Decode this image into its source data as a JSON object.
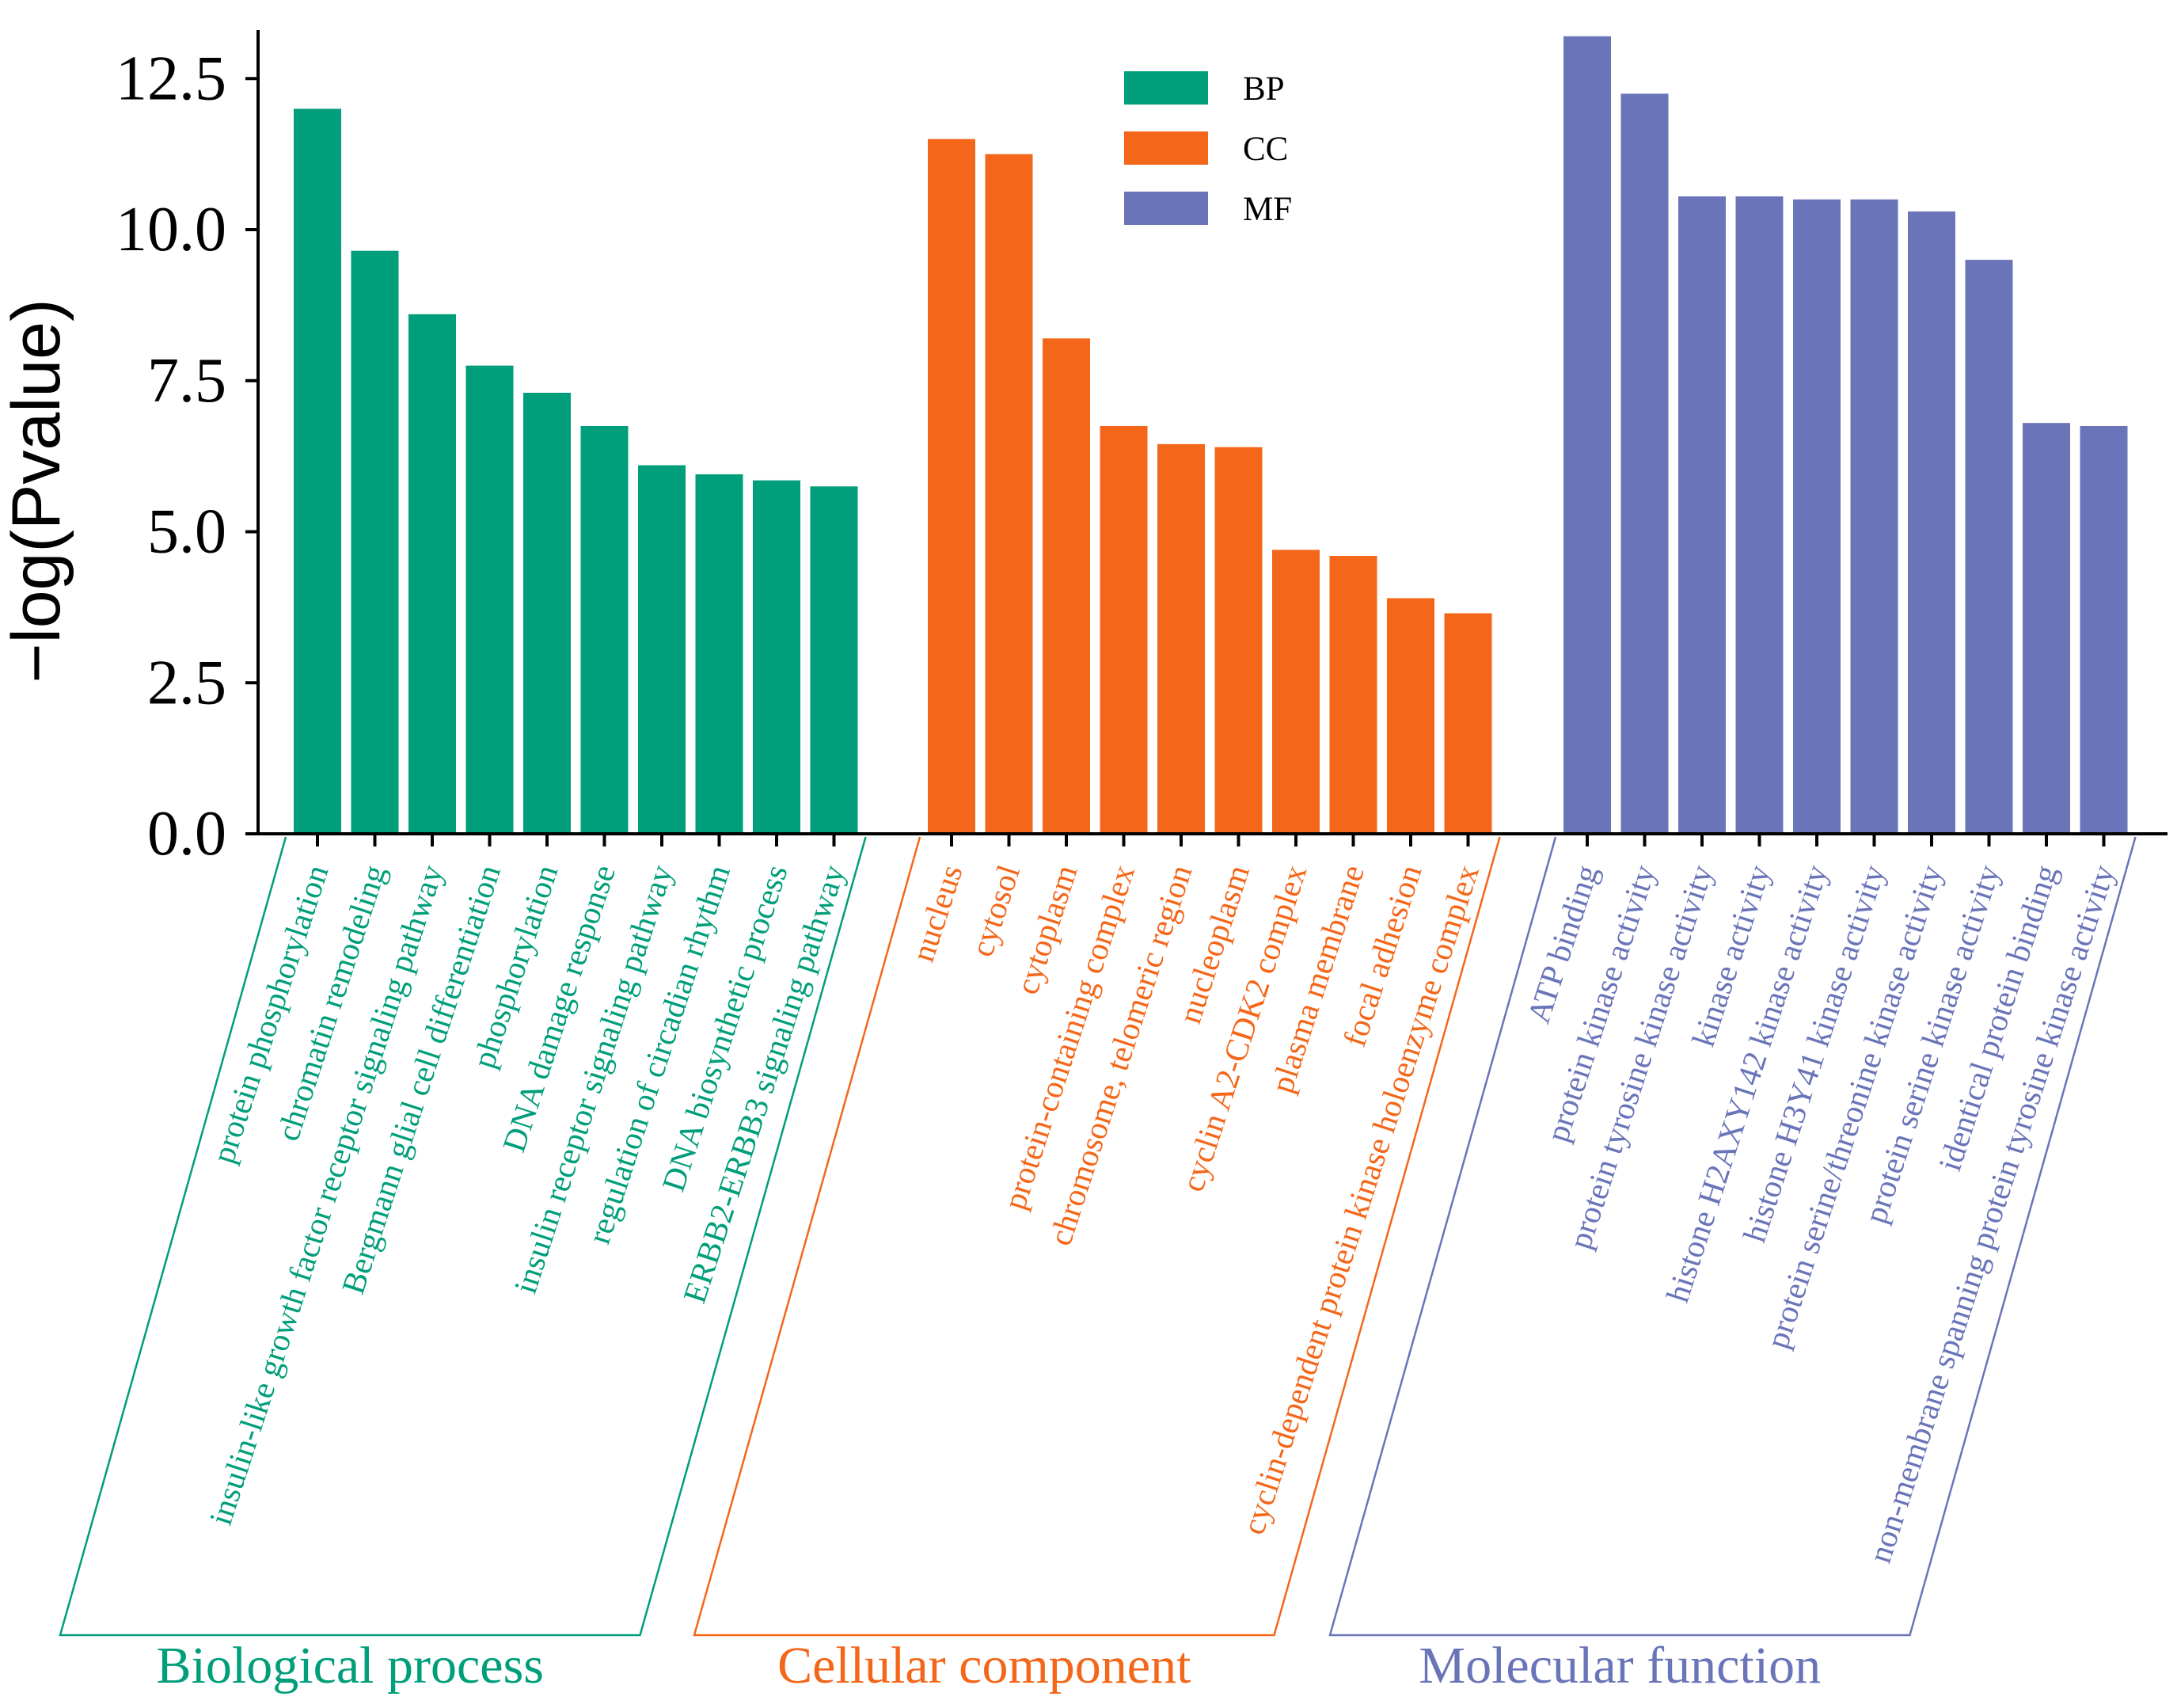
{
  "chart_data": {
    "type": "bar",
    "title": "",
    "xlabel": "",
    "ylabel": "−log(Pvalue)",
    "ylim": [
      0,
      13.3
    ],
    "yticks": [
      "0.0",
      "2.5",
      "5.0",
      "7.5",
      "10.0",
      "12.5"
    ],
    "ytick_values": [
      0,
      2.5,
      5.0,
      7.5,
      10.0,
      12.5
    ],
    "grid": false,
    "legend_position": "top-center",
    "legend": [
      {
        "label": "BP",
        "color": "#009E7A"
      },
      {
        "label": "CC",
        "color": "#F4671A"
      },
      {
        "label": "MF",
        "color": "#6A74B8"
      }
    ],
    "groups": [
      {
        "key": "BP",
        "name": "Biological process",
        "color": "#009E7A",
        "categories": [
          "protein phosphorylation",
          "chromatin remodeling",
          "insulin-like growth factor receptor signaling pathway",
          "Bergmann glial cell differentiation",
          "phosphorylation",
          "DNA damage response",
          "insulin receptor signaling pathway",
          "regulation of circadian rhythm",
          "DNA biosynthetic process",
          "ERBB2-ERBB3 signaling pathway"
        ],
        "values": [
          12.0,
          9.65,
          8.6,
          7.75,
          7.3,
          6.75,
          6.1,
          5.95,
          5.85,
          5.75
        ]
      },
      {
        "key": "CC",
        "name": "Cellular component",
        "color": "#F4671A",
        "categories": [
          "nucleus",
          "cytosol",
          "cytoplasm",
          "protein-containing complex",
          "chromosome, telomeric region",
          "nucleoplasm",
          "cyclin A2-CDK2 complex",
          "plasma membrane",
          "focal adhesion",
          "cyclin-dependent protein kinase holoenzyme complex"
        ],
        "values": [
          11.5,
          11.25,
          8.2,
          6.75,
          6.45,
          6.4,
          4.7,
          4.6,
          3.9,
          3.65
        ]
      },
      {
        "key": "MF",
        "name": "Molecular function",
        "color": "#6A74B8",
        "categories": [
          "ATP binding",
          "protein kinase activity",
          "protein tyrosine kinase activity",
          "kinase activity",
          "histone H2AXY142 kinase activity",
          "histone H3Y41 kinase activity",
          "protein serine/threonine kinase activity",
          "protein serine kinase activity",
          "identical protein binding",
          "non-membrane spanning protein tyrosine kinase activity"
        ],
        "values": [
          13.2,
          12.25,
          10.55,
          10.55,
          10.5,
          10.5,
          10.3,
          9.5,
          6.8,
          6.75
        ]
      }
    ]
  }
}
